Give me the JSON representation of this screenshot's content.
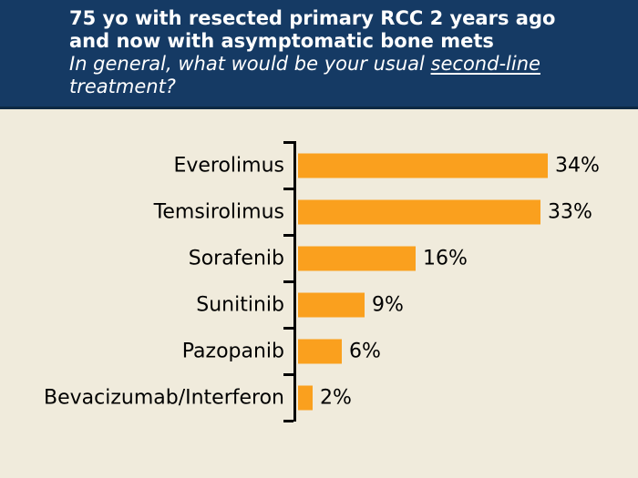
{
  "header": {
    "title_line1": "75 yo with resected primary RCC 2 years ago",
    "title_line2": "and now with asymptomatic bone mets",
    "subtitle_line1_prefix": "In general, what would be your usual ",
    "subtitle_line1_underlined": "second-line",
    "subtitle_line2": "treatment?"
  },
  "colors": {
    "header_bg": "#153A64",
    "header_border": "#0D2943",
    "background": "#F0EBDC",
    "bar": "#FAA01E",
    "axis": "#000000",
    "title_text": "#FFFFFF",
    "chart_text": "#000000"
  },
  "chart_data": {
    "type": "bar",
    "orientation": "horizontal",
    "categories": [
      "Everolimus",
      "Temsirolimus",
      "Sorafenib",
      "Sunitinib",
      "Pazopanib",
      "Bevacizumab/Interferon"
    ],
    "values": [
      34,
      33,
      16,
      9,
      6,
      2
    ],
    "value_labels": [
      "34%",
      "33%",
      "16%",
      "9%",
      "6%",
      "2%"
    ],
    "unit": "%",
    "xlim": [
      0,
      45
    ],
    "grid": false,
    "legend": false,
    "bar_color": "#FAA01E"
  }
}
